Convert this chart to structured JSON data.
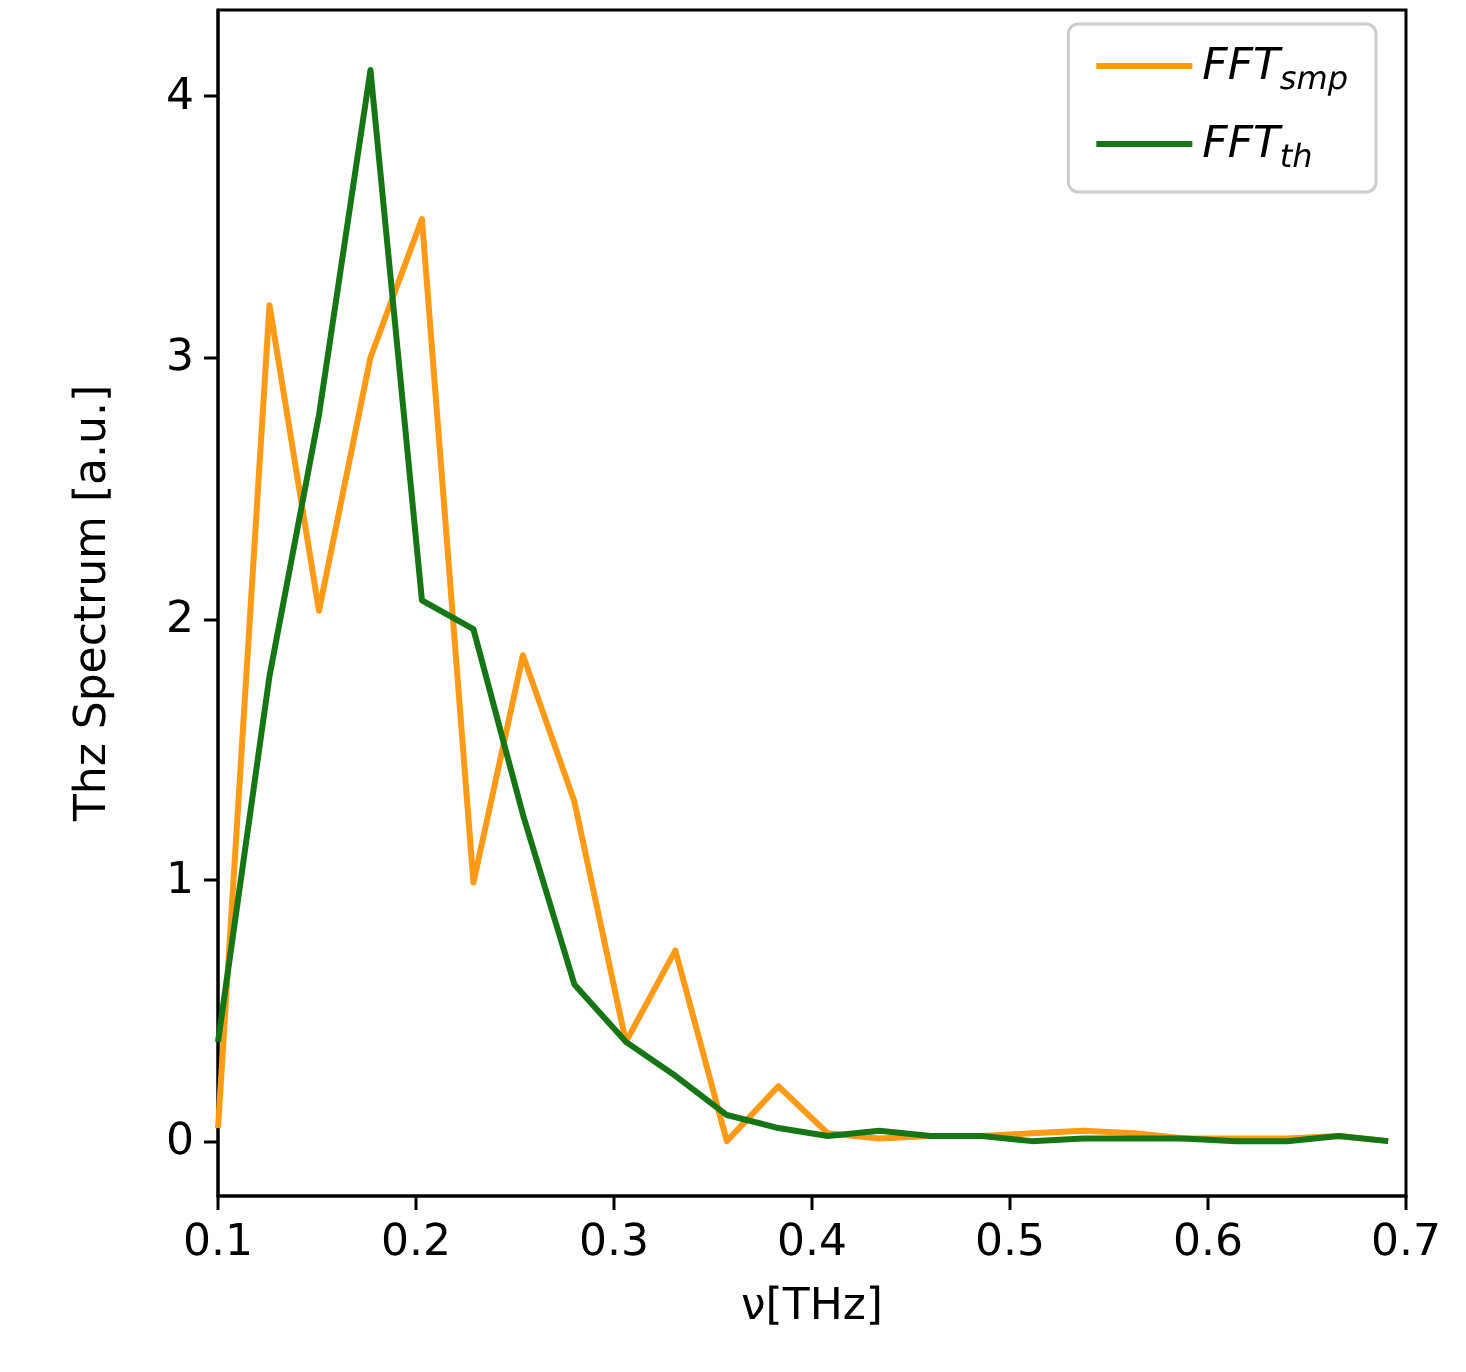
{
  "chart_data": {
    "type": "line",
    "xlabel": "ν[THz]",
    "ylabel": "Thz Spectrum [a.u.]",
    "x": [
      0.1,
      0.126,
      0.151,
      0.177,
      0.203,
      0.229,
      0.254,
      0.28,
      0.306,
      0.331,
      0.357,
      0.383,
      0.408,
      0.434,
      0.46,
      0.486,
      0.511,
      0.537,
      0.563,
      0.588,
      0.614,
      0.64,
      0.666,
      0.691
    ],
    "series": [
      {
        "name": "FFT$_{smp}$",
        "color": "#ff9a16",
        "values": [
          0.05,
          3.2,
          2.03,
          3.0,
          3.53,
          0.99,
          1.86,
          1.3,
          0.38,
          0.73,
          0.0,
          0.21,
          0.03,
          0.01,
          0.02,
          0.02,
          0.03,
          0.04,
          0.03,
          0.01,
          0.01,
          0.01,
          0.02,
          0.0
        ]
      },
      {
        "name": "FFT$_{th}$",
        "color": "#167616",
        "values": [
          0.38,
          1.78,
          2.78,
          4.1,
          2.07,
          1.96,
          1.25,
          0.6,
          0.38,
          0.25,
          0.1,
          0.05,
          0.02,
          0.04,
          0.02,
          0.02,
          0.0,
          0.01,
          0.01,
          0.01,
          0.0,
          0.0,
          0.02,
          0.0
        ]
      }
    ],
    "xlim": [
      0.1,
      0.7
    ],
    "xticks": [
      0.1,
      0.2,
      0.3,
      0.4,
      0.5,
      0.6,
      0.7
    ],
    "ylim": [
      -0.21,
      4.33
    ],
    "yticks": [
      0,
      1,
      2,
      3,
      4
    ],
    "grid": false,
    "legend": "top right",
    "marker": "none",
    "line_style": "solid"
  }
}
